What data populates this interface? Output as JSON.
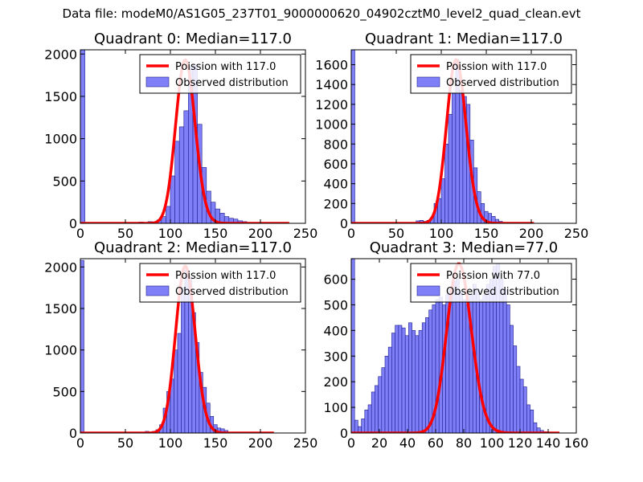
{
  "suptitle": "Data file: modeM0/AS1G05_237T01_9000000620_04902cztM0_level2_quad_clean.evt",
  "colors": {
    "bars": "#7f7ff8",
    "bar_edge": "#1e1e8c",
    "line": "#ff0000",
    "axis": "#000000"
  },
  "chart_data": [
    {
      "type": "bar",
      "title": "Quadrant 0: Median=117.0",
      "xlim": [
        0,
        250
      ],
      "ylim": [
        0,
        2050
      ],
      "xticks": [
        0,
        50,
        100,
        150,
        200,
        250
      ],
      "yticks": [
        0,
        500,
        1000,
        1500,
        2000
      ],
      "legend": {
        "location": "top-right",
        "entries": [
          "Poission with 117.0",
          "Observed distribution"
        ]
      },
      "hist": {
        "bin_width": 5,
        "edges_start": [
          0,
          65,
          70,
          75,
          80,
          85,
          90,
          95,
          100,
          105,
          110,
          115,
          120,
          125,
          130,
          135,
          140,
          145,
          150,
          155,
          160,
          165,
          170,
          175,
          180,
          185
        ],
        "counts": [
          2050,
          15,
          10,
          20,
          10,
          40,
          80,
          200,
          560,
          970,
          1140,
          1330,
          1850,
          1870,
          1170,
          660,
          380,
          250,
          170,
          120,
          80,
          60,
          50,
          30,
          20,
          5
        ]
      },
      "poisson": {
        "mean": 117.0,
        "x_range": [
          0,
          232
        ],
        "peak": 1930
      }
    },
    {
      "type": "bar",
      "title": "Quadrant 1: Median=117.0",
      "xlim": [
        0,
        250
      ],
      "ylim": [
        0,
        1750
      ],
      "xticks": [
        0,
        50,
        100,
        150,
        200,
        250
      ],
      "yticks": [
        0,
        200,
        400,
        600,
        800,
        1000,
        1200,
        1400,
        1600
      ],
      "legend": {
        "location": "top-right",
        "entries": [
          "Poission with 117.0",
          "Observed distribution"
        ]
      },
      "hist": {
        "bin_width": 4,
        "edges_start": [
          0,
          68,
          72,
          76,
          80,
          84,
          88,
          92,
          96,
          100,
          104,
          108,
          112,
          116,
          120,
          124,
          128,
          132,
          136,
          140,
          144,
          148,
          152,
          156,
          160,
          164,
          168
        ],
        "counts": [
          1750,
          10,
          25,
          30,
          20,
          30,
          60,
          200,
          250,
          450,
          800,
          1100,
          1310,
          1650,
          1340,
          1280,
          1200,
          840,
          560,
          320,
          200,
          120,
          100,
          70,
          40,
          20,
          10
        ]
      },
      "poisson": {
        "mean": 117.0,
        "x_range": [
          0,
          203
        ],
        "peak": 1650
      }
    },
    {
      "type": "bar",
      "title": "Quadrant 2: Median=117.0",
      "xlim": [
        0,
        250
      ],
      "ylim": [
        0,
        2100
      ],
      "xticks": [
        0,
        50,
        100,
        150,
        200,
        250
      ],
      "yticks": [
        0,
        500,
        1000,
        1500,
        2000
      ],
      "legend": {
        "location": "top-right",
        "entries": [
          "Poission with 117.0",
          "Observed distribution"
        ]
      },
      "hist": {
        "bin_width": 4,
        "edges_start": [
          0,
          68,
          72,
          76,
          80,
          84,
          88,
          92,
          96,
          100,
          104,
          108,
          112,
          116,
          120,
          124,
          128,
          132,
          136,
          140,
          144,
          148,
          152,
          156,
          160,
          164
        ],
        "counts": [
          2080,
          10,
          20,
          10,
          20,
          40,
          100,
          300,
          500,
          650,
          1000,
          1200,
          1750,
          1960,
          1880,
          1450,
          1090,
          730,
          550,
          360,
          200,
          100,
          60,
          50,
          30,
          10
        ]
      },
      "poisson": {
        "mean": 117.0,
        "x_range": [
          0,
          215
        ],
        "peak": 2010
      }
    },
    {
      "type": "bar",
      "title": "Quadrant 3: Median=77.0",
      "xlim": [
        0,
        160
      ],
      "ylim": [
        0,
        680
      ],
      "xticks": [
        0,
        20,
        40,
        60,
        80,
        100,
        120,
        140,
        160
      ],
      "yticks": [
        0,
        100,
        200,
        300,
        400,
        500,
        600
      ],
      "legend": {
        "location": "top-right",
        "entries": [
          "Poission with 77.0",
          "Observed distribution"
        ]
      },
      "hist": {
        "bin_width": 2.4,
        "edges_start": [
          0,
          2.4,
          4.8,
          7.2,
          9.6,
          12,
          14.4,
          16.8,
          19.2,
          21.6,
          24,
          26.4,
          28.8,
          31.2,
          33.6,
          36,
          38.4,
          40.8,
          43.2,
          45.6,
          48,
          50.4,
          52.8,
          55.2,
          57.6,
          60,
          62.4,
          64.8,
          67.2,
          69.6,
          72,
          74.4,
          76.8,
          79.2,
          81.6,
          84,
          86.4,
          88.8,
          91.2,
          93.6,
          96,
          98.4,
          100.8,
          103.2,
          105.6,
          108,
          110.4,
          112.8,
          115.2,
          117.6,
          120,
          122.4,
          124.8,
          127.2,
          129.6,
          132,
          134.4,
          136.8,
          139.2,
          141.6
        ],
        "counts": [
          680,
          50,
          25,
          55,
          90,
          110,
          160,
          185,
          220,
          255,
          300,
          335,
          390,
          420,
          420,
          410,
          380,
          430,
          400,
          380,
          400,
          430,
          450,
          480,
          500,
          520,
          530,
          500,
          540,
          560,
          590,
          600,
          550,
          520,
          500,
          540,
          580,
          560,
          520,
          540,
          580,
          600,
          650,
          660,
          600,
          560,
          500,
          420,
          340,
          260,
          210,
          180,
          110,
          90,
          40,
          20,
          10,
          5,
          2,
          1
        ]
      },
      "poisson": {
        "mean": 77.0,
        "x_range": [
          0,
          148
        ],
        "peak": 660
      }
    }
  ]
}
